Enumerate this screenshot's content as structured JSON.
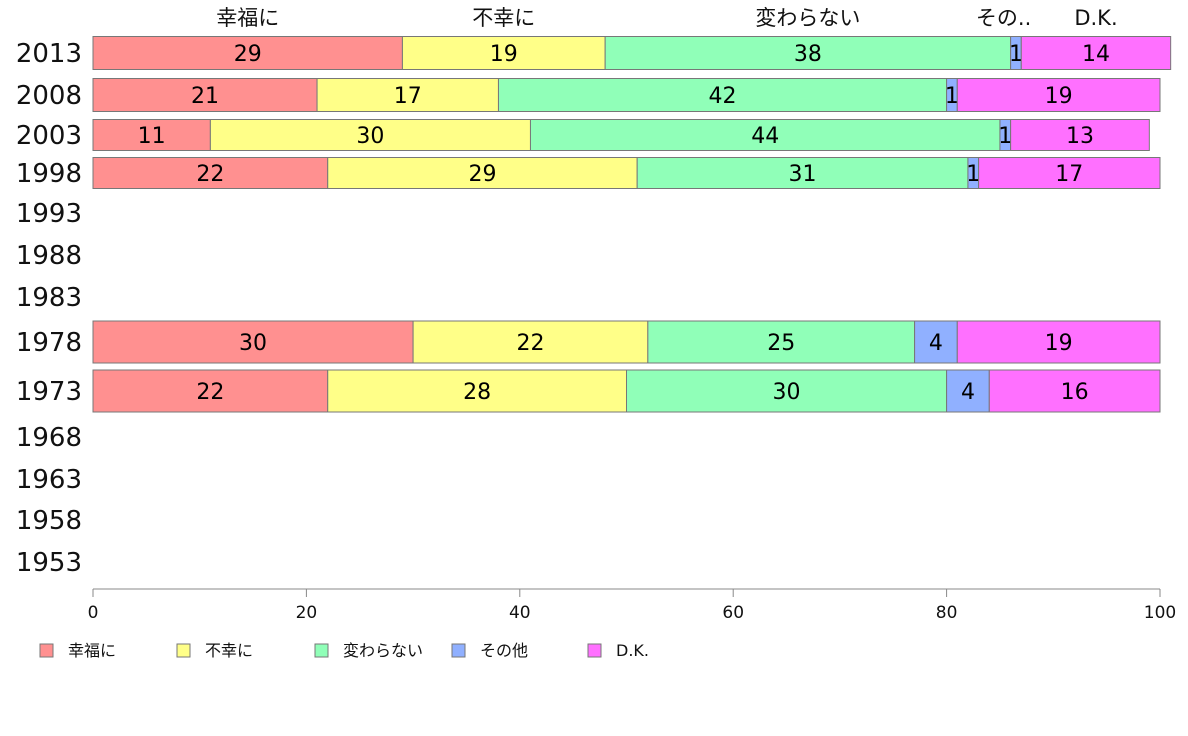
{
  "chart_data": {
    "type": "bar",
    "orientation": "horizontal",
    "stacked": true,
    "xlim": [
      0,
      100
    ],
    "x_ticks": [
      0,
      20,
      40,
      60,
      80,
      100
    ],
    "grid": false,
    "legend_position": "bottom-left",
    "categories": [
      "2013",
      "2008",
      "2003",
      "1998",
      "1993",
      "1988",
      "1983",
      "1978",
      "1973",
      "1968",
      "1963",
      "1958",
      "1953"
    ],
    "top_labels": [
      "幸福に",
      "不幸に",
      "変わらない",
      "その..",
      "D.K."
    ],
    "series": [
      {
        "name": "幸福に",
        "color": "#ff9090",
        "values": [
          29,
          21,
          11,
          22,
          null,
          null,
          null,
          30,
          22,
          null,
          null,
          null,
          null
        ]
      },
      {
        "name": "不幸に",
        "color": "#ffff88",
        "values": [
          19,
          17,
          30,
          29,
          null,
          null,
          null,
          22,
          28,
          null,
          null,
          null,
          null
        ]
      },
      {
        "name": "変わらない",
        "color": "#90ffb8",
        "values": [
          38,
          42,
          44,
          31,
          null,
          null,
          null,
          25,
          30,
          null,
          null,
          null,
          null
        ]
      },
      {
        "name": "その他",
        "color": "#90b0ff",
        "values": [
          1,
          1,
          1,
          1,
          null,
          null,
          null,
          4,
          4,
          null,
          null,
          null,
          null
        ]
      },
      {
        "name": "D.K.",
        "color": "#ff70ff",
        "values": [
          14,
          19,
          13,
          17,
          null,
          null,
          null,
          19,
          16,
          null,
          null,
          null,
          null
        ]
      }
    ]
  }
}
